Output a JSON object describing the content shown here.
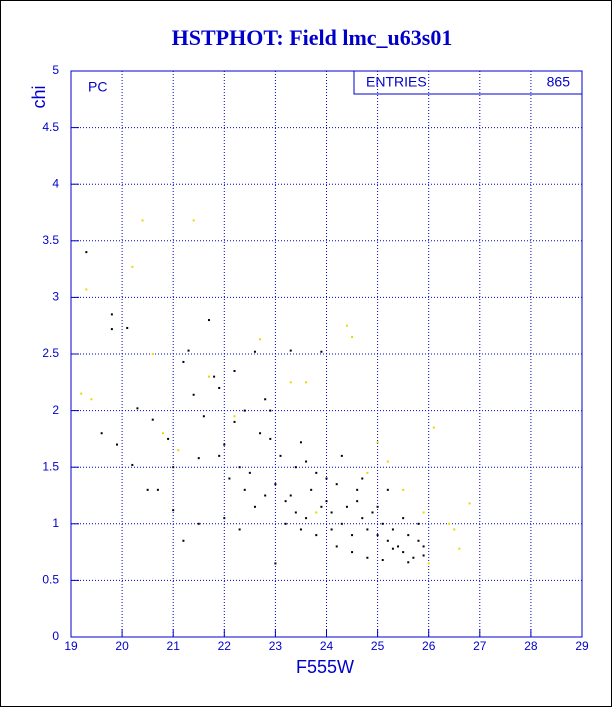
{
  "chart_data": {
    "type": "scatter",
    "title": "HSTPHOT: Field lmc_u63s01",
    "xlabel": "F555W",
    "ylabel": "chi",
    "annotation": "PC",
    "stats": {
      "label": "ENTRIES",
      "value": 865
    },
    "xlim": [
      19,
      29
    ],
    "xticks": [
      19,
      20,
      21,
      22,
      23,
      24,
      25,
      26,
      27,
      28,
      29
    ],
    "ylim": [
      0,
      5
    ],
    "yticks": [
      0,
      0.5,
      1,
      1.5,
      2,
      2.5,
      3,
      3.5,
      4,
      4.5,
      5
    ],
    "grid": true,
    "series": [
      {
        "color": "#000000",
        "x": [
          19.3,
          19.8,
          19.8,
          20.1,
          19.9,
          19.6,
          20.3,
          20.2,
          20.5,
          20.6,
          20.9,
          21.0,
          21.2,
          21.3,
          21.4,
          21.5,
          21.6,
          21.7,
          21.8,
          21.9,
          22.0,
          22.1,
          22.2,
          22.3,
          22.4,
          22.5,
          22.6,
          22.7,
          22.8,
          22.9,
          23.0,
          23.1,
          23.2,
          23.3,
          23.4,
          23.5,
          23.6,
          23.7,
          23.8,
          23.9,
          24.0,
          24.1,
          24.2,
          24.3,
          24.4,
          24.5,
          24.6,
          24.7,
          24.8,
          24.9,
          25.0,
          25.1,
          25.2,
          25.3,
          25.4,
          25.5,
          25.6,
          25.7,
          25.8,
          25.9,
          23.2,
          23.5,
          23.8,
          24.2,
          24.5,
          22.0,
          21.5,
          21.2,
          22.3,
          22.6,
          23.0,
          24.8,
          25.1,
          25.3,
          25.6,
          25.9,
          24.0,
          24.3,
          23.6,
          23.3,
          23.9,
          24.6,
          25.0,
          25.2,
          25.5,
          25.8,
          21.9,
          22.2,
          22.8,
          22.4,
          21.0,
          20.7,
          22.9,
          23.4,
          24.7,
          24.1
        ],
        "values": [
          3.4,
          2.85,
          2.72,
          2.73,
          1.7,
          1.8,
          2.02,
          1.52,
          1.3,
          1.92,
          1.75,
          1.12,
          2.43,
          2.53,
          2.14,
          1.58,
          1.95,
          2.8,
          2.3,
          2.2,
          1.7,
          1.4,
          1.9,
          1.5,
          2.0,
          1.45,
          2.52,
          1.8,
          1.25,
          2.0,
          1.35,
          1.6,
          1.2,
          2.53,
          1.5,
          1.72,
          1.05,
          1.3,
          1.45,
          2.52,
          1.2,
          1.1,
          1.35,
          1.0,
          1.15,
          0.9,
          1.3,
          1.05,
          0.95,
          1.1,
          0.9,
          1.0,
          0.85,
          0.95,
          0.8,
          0.75,
          0.9,
          0.7,
          0.85,
          0.72,
          1.0,
          0.95,
          0.9,
          0.8,
          0.75,
          1.05,
          1.0,
          0.85,
          0.95,
          1.15,
          0.65,
          0.7,
          0.68,
          0.78,
          0.66,
          0.8,
          1.4,
          1.6,
          1.55,
          1.25,
          1.15,
          1.2,
          1.15,
          1.3,
          1.05,
          1.0,
          1.6,
          2.35,
          2.1,
          1.3,
          1.5,
          1.3,
          1.75,
          1.1,
          1.4,
          0.95
        ]
      },
      {
        "color": "#e8d800",
        "x": [
          19.3,
          20.4,
          21.4,
          20.2,
          19.2,
          19.4,
          20.8,
          21.7,
          22.2,
          23.3,
          23.6,
          24.4,
          24.5,
          25.0,
          25.5,
          25.9,
          26.1,
          26.4,
          26.6,
          26.8,
          25.2,
          24.8,
          22.7,
          21.1,
          26.5,
          26.0,
          20.6,
          23.8
        ],
        "values": [
          3.07,
          3.68,
          3.68,
          3.27,
          2.15,
          2.1,
          1.8,
          2.3,
          1.95,
          2.25,
          2.25,
          2.75,
          2.65,
          1.72,
          1.3,
          1.1,
          1.85,
          1.0,
          0.78,
          1.18,
          1.55,
          1.45,
          2.63,
          1.65,
          0.95,
          0.65,
          2.5,
          1.1
        ]
      }
    ]
  }
}
